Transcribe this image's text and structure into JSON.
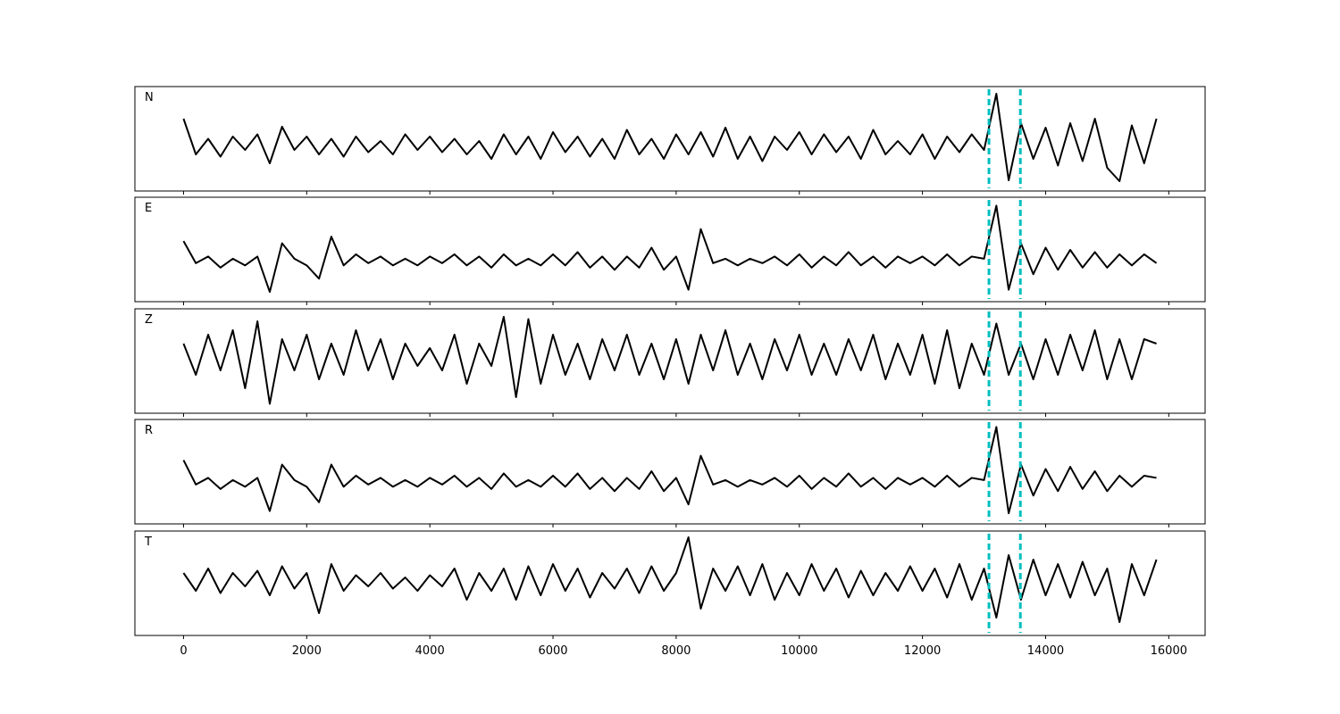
{
  "chart_data": {
    "type": "line",
    "x": [
      0,
      200,
      400,
      600,
      800,
      1000,
      1200,
      1400,
      1600,
      1800,
      2000,
      2200,
      2400,
      2600,
      2800,
      3000,
      3200,
      3400,
      3600,
      3800,
      4000,
      4200,
      4400,
      4600,
      4800,
      5000,
      5200,
      5400,
      5600,
      5800,
      6000,
      6200,
      6400,
      6600,
      6800,
      7000,
      7200,
      7400,
      7600,
      7800,
      8000,
      8200,
      8400,
      8600,
      8800,
      9000,
      9200,
      9400,
      9600,
      9800,
      10000,
      10200,
      10400,
      10600,
      10800,
      11000,
      11200,
      11400,
      11600,
      11800,
      12000,
      12200,
      12400,
      12600,
      12800,
      13000,
      13200,
      13400,
      13600,
      13800,
      14000,
      14200,
      14400,
      14600,
      14800,
      15000,
      15200,
      15400,
      15600,
      15800
    ],
    "xlim": [
      -790,
      16590
    ],
    "xticks": [
      0,
      2000,
      4000,
      6000,
      8000,
      10000,
      12000,
      14000,
      16000
    ],
    "vlines": [
      13080,
      13590
    ],
    "vline_color": "#00bfbf",
    "series": [
      {
        "name": "N",
        "color": "#000000",
        "ylim": [
          -1.02,
          1.32
        ],
        "values": [
          0.6,
          -0.2,
          0.15,
          -0.25,
          0.2,
          -0.1,
          0.25,
          -0.4,
          0.42,
          -0.1,
          0.2,
          -0.2,
          0.15,
          -0.25,
          0.2,
          -0.15,
          0.1,
          -0.2,
          0.25,
          -0.1,
          0.2,
          -0.15,
          0.15,
          -0.2,
          0.1,
          -0.3,
          0.25,
          -0.2,
          0.2,
          -0.3,
          0.3,
          -0.15,
          0.2,
          -0.25,
          0.15,
          -0.3,
          0.35,
          -0.2,
          0.15,
          -0.3,
          0.25,
          -0.2,
          0.3,
          -0.25,
          0.4,
          -0.3,
          0.2,
          -0.35,
          0.2,
          -0.1,
          0.3,
          -0.2,
          0.25,
          -0.15,
          0.2,
          -0.3,
          0.35,
          -0.2,
          0.1,
          -0.2,
          0.25,
          -0.3,
          0.2,
          -0.15,
          0.25,
          -0.1,
          1.16,
          -0.78,
          0.5,
          -0.3,
          0.4,
          -0.45,
          0.5,
          -0.35,
          0.6,
          -0.5,
          -0.8,
          0.45,
          -0.4,
          0.6
        ]
      },
      {
        "name": "E",
        "color": "#000000",
        "ylim": [
          -0.92,
          1.44
        ],
        "values": [
          0.45,
          -0.05,
          0.1,
          -0.15,
          0.05,
          -0.1,
          0.1,
          -0.7,
          0.4,
          0.05,
          -0.1,
          -0.4,
          0.55,
          -0.1,
          0.15,
          -0.05,
          0.1,
          -0.1,
          0.05,
          -0.1,
          0.1,
          -0.05,
          0.15,
          -0.1,
          0.1,
          -0.15,
          0.15,
          -0.1,
          0.05,
          -0.1,
          0.15,
          -0.1,
          0.2,
          -0.15,
          0.1,
          -0.2,
          0.1,
          -0.15,
          0.3,
          -0.2,
          0.1,
          -0.65,
          0.72,
          -0.05,
          0.05,
          -0.1,
          0.05,
          -0.05,
          0.1,
          -0.1,
          0.15,
          -0.15,
          0.1,
          -0.1,
          0.2,
          -0.1,
          0.1,
          -0.15,
          0.1,
          -0.05,
          0.1,
          -0.1,
          0.15,
          -0.1,
          0.1,
          0.05,
          1.25,
          -0.65,
          0.4,
          -0.3,
          0.3,
          -0.2,
          0.25,
          -0.15,
          0.2,
          -0.15,
          0.15,
          -0.1,
          0.15,
          -0.05
        ]
      },
      {
        "name": "Z",
        "color": "#000000",
        "ylim": [
          -1.26,
          1.08
        ],
        "values": [
          0.3,
          -0.4,
          0.5,
          -0.3,
          0.6,
          -0.7,
          0.8,
          -1.05,
          0.4,
          -0.3,
          0.5,
          -0.5,
          0.3,
          -0.4,
          0.6,
          -0.3,
          0.4,
          -0.5,
          0.3,
          -0.2,
          0.2,
          -0.3,
          0.5,
          -0.6,
          0.3,
          -0.2,
          0.9,
          -0.9,
          0.85,
          -0.6,
          0.5,
          -0.4,
          0.3,
          -0.5,
          0.4,
          -0.3,
          0.5,
          -0.4,
          0.3,
          -0.5,
          0.4,
          -0.6,
          0.5,
          -0.3,
          0.6,
          -0.4,
          0.3,
          -0.5,
          0.4,
          -0.3,
          0.5,
          -0.4,
          0.3,
          -0.4,
          0.4,
          -0.3,
          0.5,
          -0.5,
          0.3,
          -0.4,
          0.5,
          -0.6,
          0.6,
          -0.7,
          0.3,
          -0.4,
          0.75,
          -0.4,
          0.3,
          -0.5,
          0.4,
          -0.4,
          0.5,
          -0.3,
          0.6,
          -0.5,
          0.4,
          -0.5,
          0.4,
          0.3
        ]
      },
      {
        "name": "R",
        "color": "#000000",
        "ylim": [
          -0.94,
          1.42
        ],
        "values": [
          0.5,
          -0.05,
          0.1,
          -0.15,
          0.05,
          -0.1,
          0.1,
          -0.65,
          0.4,
          0.05,
          -0.1,
          -0.45,
          0.4,
          -0.1,
          0.15,
          -0.05,
          0.1,
          -0.1,
          0.05,
          -0.1,
          0.1,
          -0.05,
          0.15,
          -0.1,
          0.1,
          -0.15,
          0.2,
          -0.1,
          0.05,
          -0.1,
          0.15,
          -0.1,
          0.2,
          -0.15,
          0.1,
          -0.2,
          0.1,
          -0.15,
          0.25,
          -0.2,
          0.1,
          -0.5,
          0.6,
          -0.05,
          0.05,
          -0.1,
          0.05,
          -0.05,
          0.1,
          -0.1,
          0.15,
          -0.15,
          0.1,
          -0.1,
          0.2,
          -0.1,
          0.1,
          -0.15,
          0.1,
          -0.05,
          0.1,
          -0.1,
          0.15,
          -0.1,
          0.1,
          0.05,
          1.25,
          -0.7,
          0.4,
          -0.3,
          0.3,
          -0.2,
          0.35,
          -0.15,
          0.25,
          -0.2,
          0.15,
          -0.1,
          0.15,
          0.1
        ]
      },
      {
        "name": "T",
        "color": "#000000",
        "ylim": [
          -1.2,
          1.14
        ],
        "values": [
          0.2,
          -0.2,
          0.3,
          -0.25,
          0.2,
          -0.1,
          0.25,
          -0.3,
          0.35,
          -0.15,
          0.2,
          -0.7,
          0.4,
          -0.2,
          0.15,
          -0.1,
          0.2,
          -0.15,
          0.1,
          -0.2,
          0.15,
          -0.1,
          0.3,
          -0.4,
          0.2,
          -0.2,
          0.3,
          -0.4,
          0.35,
          -0.3,
          0.4,
          -0.2,
          0.3,
          -0.35,
          0.2,
          -0.15,
          0.3,
          -0.25,
          0.35,
          -0.2,
          0.2,
          1.0,
          -0.6,
          0.3,
          -0.2,
          0.35,
          -0.3,
          0.4,
          -0.4,
          0.2,
          -0.3,
          0.4,
          -0.2,
          0.3,
          -0.35,
          0.25,
          -0.3,
          0.2,
          -0.2,
          0.35,
          -0.2,
          0.3,
          -0.35,
          0.4,
          -0.4,
          0.3,
          -0.8,
          0.6,
          -0.4,
          0.5,
          -0.3,
          0.4,
          -0.35,
          0.45,
          -0.3,
          0.3,
          -0.9,
          0.4,
          -0.3,
          0.5
        ]
      }
    ]
  }
}
